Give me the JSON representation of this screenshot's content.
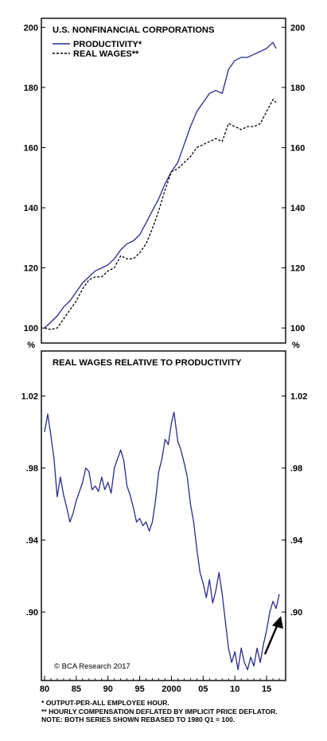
{
  "chart_data": [
    {
      "type": "line",
      "title": "U.S. NONFINANCIAL CORPORATIONS",
      "ylim": [
        95,
        203
      ],
      "yticks": [
        100,
        120,
        140,
        160,
        180,
        200
      ],
      "grid": false,
      "legend": "top-left",
      "series": [
        {
          "name": "PRODUCTIVITY*",
          "color": "#2a2a8c",
          "style": "solid",
          "points": [
            [
              1980,
              100
            ],
            [
              1981,
              102
            ],
            [
              1982,
              104
            ],
            [
              1983,
              107
            ],
            [
              1984,
              109
            ],
            [
              1985,
              112
            ],
            [
              1986,
              115
            ],
            [
              1987,
              117
            ],
            [
              1988,
              119
            ],
            [
              1989,
              120
            ],
            [
              1990,
              121
            ],
            [
              1991,
              123
            ],
            [
              1992,
              126
            ],
            [
              1993,
              128
            ],
            [
              1994,
              129
            ],
            [
              1995,
              131
            ],
            [
              1996,
              135
            ],
            [
              1997,
              139
            ],
            [
              1998,
              143
            ],
            [
              1999,
              148
            ],
            [
              2000,
              152
            ],
            [
              2001,
              155
            ],
            [
              2002,
              161
            ],
            [
              2003,
              167
            ],
            [
              2004,
              172
            ],
            [
              2005,
              175
            ],
            [
              2006,
              178
            ],
            [
              2007,
              179
            ],
            [
              2008,
              178
            ],
            [
              2009,
              186
            ],
            [
              2010,
              189
            ],
            [
              2011,
              190
            ],
            [
              2012,
              190
            ],
            [
              2013,
              191
            ],
            [
              2014,
              192
            ],
            [
              2015,
              193
            ],
            [
              2016,
              195
            ],
            [
              2016.5,
              193
            ]
          ]
        },
        {
          "name": "REAL WAGES**",
          "color": "#000000",
          "style": "dashed",
          "points": [
            [
              1980,
              100
            ],
            [
              1981,
              99.5
            ],
            [
              1982,
              100
            ],
            [
              1983,
              103
            ],
            [
              1984,
              106
            ],
            [
              1985,
              109
            ],
            [
              1986,
              113
            ],
            [
              1987,
              116
            ],
            [
              1988,
              117
            ],
            [
              1989,
              117
            ],
            [
              1990,
              119
            ],
            [
              1991,
              120
            ],
            [
              1992,
              124
            ],
            [
              1993,
              123
            ],
            [
              1994,
              123
            ],
            [
              1995,
              125
            ],
            [
              1996,
              128
            ],
            [
              1997,
              133
            ],
            [
              1998,
              139
            ],
            [
              1999,
              146
            ],
            [
              2000,
              152
            ],
            [
              2001,
              153
            ],
            [
              2002,
              155
            ],
            [
              2003,
              157
            ],
            [
              2004,
              160
            ],
            [
              2005,
              161
            ],
            [
              2006,
              162
            ],
            [
              2007,
              163
            ],
            [
              2008,
              162
            ],
            [
              2009,
              168
            ],
            [
              2010,
              167
            ],
            [
              2011,
              166
            ],
            [
              2012,
              167
            ],
            [
              2013,
              167
            ],
            [
              2014,
              168
            ],
            [
              2015,
              172
            ],
            [
              2016,
              176
            ],
            [
              2016.5,
              175
            ]
          ]
        }
      ]
    },
    {
      "type": "line",
      "title": "REAL WAGES RELATIVE TO PRODUCTIVITY",
      "ylabel": "%",
      "ylim": [
        0.862,
        1.045
      ],
      "yticks": [
        0.9,
        0.94,
        0.98,
        1.02
      ],
      "ytick_labels": [
        ".90",
        ".94",
        ".98",
        "1.02"
      ],
      "xlim": [
        1979.5,
        2018
      ],
      "xticks": [
        1980,
        1985,
        1990,
        1995,
        2000,
        2005,
        2010,
        2015
      ],
      "xtick_labels": [
        "80",
        "85",
        "90",
        "95",
        "2000",
        "05",
        "10",
        "15"
      ],
      "grid": false,
      "series": [
        {
          "name": "",
          "color": "#2a2a8c",
          "points": [
            [
              1980,
              1.0
            ],
            [
              1980.5,
              1.01
            ],
            [
              1981,
              0.998
            ],
            [
              1981.5,
              0.985
            ],
            [
              1982,
              0.964
            ],
            [
              1982.5,
              0.975
            ],
            [
              1983,
              0.965
            ],
            [
              1983.5,
              0.958
            ],
            [
              1984,
              0.95
            ],
            [
              1984.5,
              0.955
            ],
            [
              1985,
              0.962
            ],
            [
              1986,
              0.972
            ],
            [
              1986.5,
              0.98
            ],
            [
              1987,
              0.978
            ],
            [
              1987.5,
              0.968
            ],
            [
              1988,
              0.97
            ],
            [
              1988.5,
              0.967
            ],
            [
              1989,
              0.975
            ],
            [
              1989.5,
              0.968
            ],
            [
              1990,
              0.972
            ],
            [
              1990.5,
              0.966
            ],
            [
              1991,
              0.98
            ],
            [
              1991.5,
              0.985
            ],
            [
              1992,
              0.99
            ],
            [
              1992.5,
              0.984
            ],
            [
              1993,
              0.97
            ],
            [
              1993.5,
              0.965
            ],
            [
              1994,
              0.958
            ],
            [
              1994.5,
              0.95
            ],
            [
              1995,
              0.952
            ],
            [
              1995.5,
              0.948
            ],
            [
              1996,
              0.95
            ],
            [
              1996.5,
              0.945
            ],
            [
              1997,
              0.95
            ],
            [
              1997.5,
              0.962
            ],
            [
              1998,
              0.978
            ],
            [
              1998.5,
              0.985
            ],
            [
              1999,
              0.996
            ],
            [
              1999.5,
              0.993
            ],
            [
              2000,
              1.005
            ],
            [
              2000.4,
              1.011
            ],
            [
              2001,
              0.995
            ],
            [
              2001.5,
              0.99
            ],
            [
              2002,
              0.983
            ],
            [
              2002.5,
              0.975
            ],
            [
              2003,
              0.96
            ],
            [
              2003.5,
              0.95
            ],
            [
              2004,
              0.935
            ],
            [
              2004.5,
              0.922
            ],
            [
              2005,
              0.916
            ],
            [
              2005.5,
              0.908
            ],
            [
              2006,
              0.918
            ],
            [
              2006.5,
              0.905
            ],
            [
              2007,
              0.912
            ],
            [
              2007.5,
              0.922
            ],
            [
              2008,
              0.91
            ],
            [
              2008.5,
              0.895
            ],
            [
              2009,
              0.88
            ],
            [
              2009.5,
              0.872
            ],
            [
              2010,
              0.878
            ],
            [
              2010.5,
              0.868
            ],
            [
              2011,
              0.88
            ],
            [
              2011.5,
              0.872
            ],
            [
              2012,
              0.868
            ],
            [
              2012.5,
              0.875
            ],
            [
              2013,
              0.87
            ],
            [
              2013.5,
              0.88
            ],
            [
              2014,
              0.872
            ],
            [
              2014.5,
              0.882
            ],
            [
              2015,
              0.89
            ],
            [
              2015.5,
              0.9
            ],
            [
              2016,
              0.906
            ],
            [
              2016.5,
              0.902
            ],
            [
              2017,
              0.91
            ]
          ]
        }
      ]
    }
  ],
  "watermark": "© BCA Research 2017",
  "footnotes": [
    "*  OUTPUT-PER-ALL EMPLOYEE HOUR.",
    "** HOURLY COMPENSATION DEFLATED BY IMPLICIT PRICE DEFLATOR.",
    "NOTE: BOTH SERIES SHOWN REBASED TO 1980 Q1 = 100."
  ]
}
